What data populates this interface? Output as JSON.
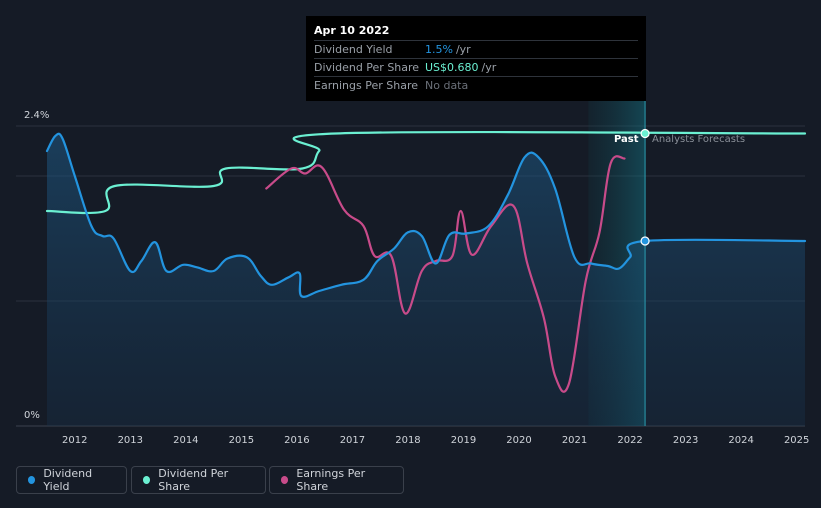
{
  "chart_data": {
    "type": "line",
    "y_axis_labels": [
      "2.4%",
      "0%"
    ],
    "x": [
      "2012",
      "2013",
      "2014",
      "2015",
      "2016",
      "2017",
      "2018",
      "2019",
      "2020",
      "2021",
      "2022",
      "2023",
      "2024",
      "2025"
    ],
    "xlim": [
      2011.5,
      2025.15
    ],
    "ylim": [
      0,
      2.4
    ],
    "grid": true,
    "series": [
      {
        "name": "Dividend Yield",
        "color": "#2394df",
        "points": [
          [
            2011.5,
            2.2
          ],
          [
            2011.65,
            2.32
          ],
          [
            2011.78,
            2.3
          ],
          [
            2012.0,
            2.0
          ],
          [
            2012.3,
            1.6
          ],
          [
            2012.5,
            1.52
          ],
          [
            2012.7,
            1.5
          ],
          [
            2013.0,
            1.24
          ],
          [
            2013.2,
            1.32
          ],
          [
            2013.45,
            1.47
          ],
          [
            2013.65,
            1.24
          ],
          [
            2013.95,
            1.29
          ],
          [
            2014.2,
            1.27
          ],
          [
            2014.5,
            1.24
          ],
          [
            2014.75,
            1.34
          ],
          [
            2015.1,
            1.35
          ],
          [
            2015.35,
            1.2
          ],
          [
            2015.55,
            1.13
          ],
          [
            2015.85,
            1.19
          ],
          [
            2016.05,
            1.22
          ],
          [
            2016.08,
            1.04
          ],
          [
            2016.4,
            1.08
          ],
          [
            2016.8,
            1.13
          ],
          [
            2017.2,
            1.17
          ],
          [
            2017.45,
            1.32
          ],
          [
            2017.75,
            1.42
          ],
          [
            2018.0,
            1.55
          ],
          [
            2018.25,
            1.52
          ],
          [
            2018.5,
            1.3
          ],
          [
            2018.75,
            1.53
          ],
          [
            2019.05,
            1.54
          ],
          [
            2019.45,
            1.6
          ],
          [
            2019.8,
            1.85
          ],
          [
            2020.1,
            2.15
          ],
          [
            2020.35,
            2.15
          ],
          [
            2020.65,
            1.9
          ],
          [
            2021.0,
            1.35
          ],
          [
            2021.3,
            1.3
          ],
          [
            2021.6,
            1.28
          ],
          [
            2021.8,
            1.26
          ],
          [
            2022.0,
            1.35
          ],
          [
            2022.27,
            1.48
          ],
          [
            2025.15,
            1.48
          ]
        ]
      },
      {
        "name": "Dividend Per Share",
        "color": "#6bf0d2",
        "points": [
          [
            2011.5,
            1.72
          ],
          [
            2012.55,
            1.72
          ],
          [
            2012.72,
            1.92
          ],
          [
            2014.5,
            1.92
          ],
          [
            2014.72,
            2.06
          ],
          [
            2016.1,
            2.06
          ],
          [
            2016.4,
            2.2
          ],
          [
            2016.7,
            2.34
          ],
          [
            2025.15,
            2.34
          ]
        ]
      },
      {
        "name": "Earnings Per Share",
        "color": "#c84b8a",
        "points": [
          [
            2015.45,
            1.9
          ],
          [
            2015.9,
            2.06
          ],
          [
            2016.15,
            2.02
          ],
          [
            2016.45,
            2.07
          ],
          [
            2016.85,
            1.73
          ],
          [
            2017.2,
            1.6
          ],
          [
            2017.4,
            1.36
          ],
          [
            2017.7,
            1.36
          ],
          [
            2017.95,
            0.9
          ],
          [
            2018.25,
            1.24
          ],
          [
            2018.5,
            1.32
          ],
          [
            2018.8,
            1.36
          ],
          [
            2018.95,
            1.72
          ],
          [
            2019.15,
            1.37
          ],
          [
            2019.5,
            1.6
          ],
          [
            2019.9,
            1.76
          ],
          [
            2020.15,
            1.3
          ],
          [
            2020.45,
            0.86
          ],
          [
            2020.65,
            0.4
          ],
          [
            2020.9,
            0.34
          ],
          [
            2021.2,
            1.16
          ],
          [
            2021.45,
            1.55
          ],
          [
            2021.65,
            2.1
          ],
          [
            2021.9,
            2.14
          ]
        ]
      }
    ],
    "forecast_marker": {
      "x": 2022.27,
      "past_label": "Past",
      "forecast_label": "Analysts Forecasts"
    }
  },
  "tooltip": {
    "date": "Apr 10 2022",
    "rows": [
      {
        "label": "Dividend Yield",
        "value": "1.5%",
        "unit": "/yr"
      },
      {
        "label": "Dividend Per Share",
        "value": "US$0.680",
        "unit": "/yr"
      },
      {
        "label": "Earnings Per Share",
        "value": "No data",
        "unit": ""
      }
    ]
  },
  "legend": [
    {
      "label": "Dividend Yield",
      "color": "#2394df"
    },
    {
      "label": "Dividend Per Share",
      "color": "#6bf0d2"
    },
    {
      "label": "Earnings Per Share",
      "color": "#c84b8a"
    }
  ]
}
